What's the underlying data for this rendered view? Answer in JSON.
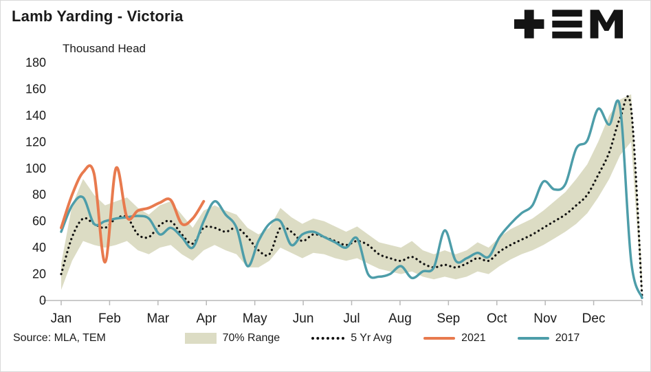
{
  "header": {
    "title": "Lamb Yarding - Victoria",
    "subtitle": "Thousand Head",
    "logo_alt": "TEM"
  },
  "footer": {
    "source": "Source: MLA, TEM"
  },
  "legend": {
    "range": "70% Range",
    "avg": "5 Yr Avg",
    "y2021": "2021",
    "y2017": "2017"
  },
  "colors": {
    "band": "#dcdcc4",
    "avg": "#111111",
    "y2021": "#e87a4e",
    "y2017": "#4d9da9",
    "axis": "#b8b8b8",
    "text": "#1a1a1a"
  },
  "chart_data": {
    "type": "line",
    "title": "Lamb Yarding - Victoria",
    "xlabel": "",
    "ylabel": "Thousand Head",
    "ylim": [
      0,
      180
    ],
    "yticks": [
      0,
      20,
      40,
      60,
      80,
      100,
      120,
      140,
      160,
      180
    ],
    "grid": false,
    "legend_position": "bottom",
    "x_unit": "weekly, Jan-Dec",
    "x_months": [
      "Jan",
      "Feb",
      "Mar",
      "Apr",
      "May",
      "Jun",
      "Jul",
      "Aug",
      "Sep",
      "Oct",
      "Nov",
      "Dec"
    ],
    "weeks": 54,
    "series": [
      {
        "name": "70% Range",
        "type": "band",
        "color": "#dcdcc4",
        "lower": [
          8,
          30,
          45,
          42,
          40,
          42,
          45,
          38,
          35,
          40,
          42,
          35,
          30,
          38,
          42,
          38,
          35,
          25,
          25,
          30,
          40,
          36,
          32,
          36,
          35,
          32,
          30,
          32,
          28,
          24,
          22,
          20,
          22,
          18,
          16,
          18,
          16,
          18,
          22,
          20,
          26,
          31,
          35,
          38,
          42,
          47,
          52,
          58,
          66,
          78,
          92,
          110,
          120,
          2
        ],
        "upper": [
          28,
          72,
          92,
          80,
          72,
          75,
          78,
          70,
          65,
          72,
          75,
          65,
          55,
          68,
          72,
          68,
          65,
          55,
          50,
          55,
          70,
          63,
          58,
          62,
          60,
          56,
          52,
          56,
          50,
          44,
          42,
          40,
          45,
          38,
          35,
          38,
          35,
          38,
          44,
          40,
          48,
          54,
          58,
          62,
          68,
          75,
          82,
          92,
          103,
          120,
          140,
          152,
          156,
          20
        ]
      },
      {
        "name": "5 Yr Avg",
        "type": "dotted",
        "color": "#111111",
        "values": [
          20,
          48,
          62,
          58,
          55,
          62,
          63,
          50,
          48,
          57,
          60,
          50,
          43,
          55,
          55,
          52,
          55,
          48,
          38,
          35,
          55,
          52,
          45,
          50,
          48,
          45,
          42,
          45,
          42,
          35,
          32,
          30,
          33,
          28,
          25,
          27,
          25,
          28,
          32,
          30,
          37,
          42,
          46,
          50,
          55,
          60,
          65,
          72,
          80,
          95,
          112,
          138,
          145,
          3
        ]
      },
      {
        "name": "2017",
        "type": "line",
        "color": "#4d9da9",
        "values": [
          52,
          72,
          78,
          58,
          60,
          62,
          63,
          64,
          62,
          50,
          55,
          48,
          40,
          60,
          75,
          65,
          55,
          26,
          45,
          58,
          60,
          42,
          50,
          52,
          48,
          44,
          40,
          47,
          20,
          18,
          20,
          26,
          17,
          22,
          25,
          53,
          30,
          32,
          36,
          33,
          48,
          58,
          66,
          72,
          90,
          84,
          88,
          115,
          121,
          145,
          133,
          146,
          30,
          2
        ]
      },
      {
        "name": "2021",
        "type": "line",
        "color": "#e87a4e",
        "values": [
          55,
          80,
          97,
          96,
          29,
          100,
          63,
          68,
          70,
          74,
          76,
          58,
          62,
          75
        ]
      }
    ]
  }
}
